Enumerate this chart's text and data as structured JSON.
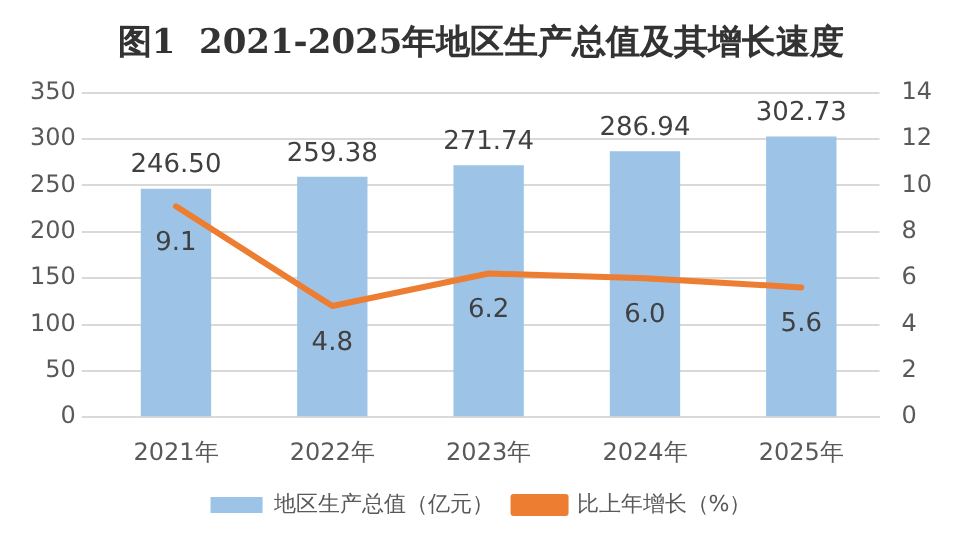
{
  "chart_data": {
    "type": "bar",
    "title": "图1  2021-2025年地区生产总值及其增长速度",
    "categories": [
      "2021年",
      "2022年",
      "2023年",
      "2024年",
      "2025年"
    ],
    "series": [
      {
        "name": "地区生产总值（亿元）",
        "color": "#9dc3e6",
        "values": [
          246.5,
          259.38,
          271.74,
          286.94,
          302.73
        ],
        "value_labels": [
          "246.50",
          "259.38",
          "271.74",
          "286.94",
          "302.73"
        ]
      },
      {
        "name": "比上年增长（%）",
        "type": "line",
        "axis": "y2",
        "color": "#ed7d31",
        "values": [
          9.1,
          4.8,
          6.2,
          6.0,
          5.6
        ],
        "value_labels": [
          "9.1",
          "4.8",
          "6.2",
          "6.0",
          "5.6"
        ]
      }
    ],
    "ylim": [
      0,
      350
    ],
    "yticks": [
      0,
      50,
      100,
      150,
      200,
      250,
      300,
      350
    ],
    "y2lim": [
      0,
      14
    ],
    "y2ticks": [
      0,
      2,
      4,
      6,
      8,
      10,
      12,
      14
    ],
    "grid": "y",
    "legend": "bottom",
    "marker": "none"
  }
}
